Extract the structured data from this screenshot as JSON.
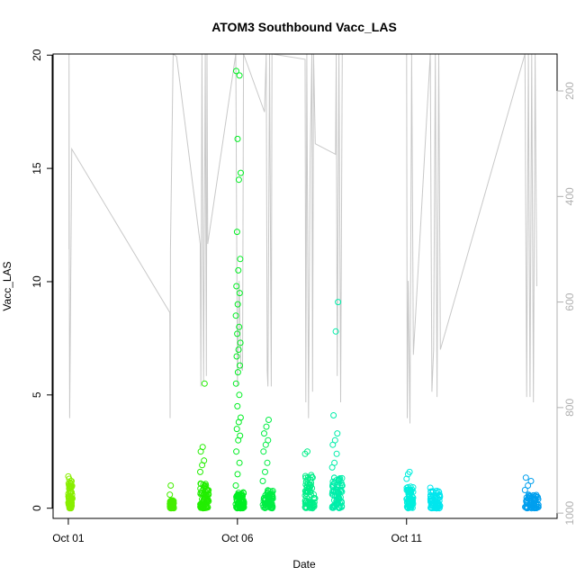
{
  "chart_data": {
    "type": "scatter",
    "title": "ATOM3 Southbound Vacc_LAS",
    "xlabel": "Date",
    "ylabel": "Vacc_LAS",
    "x_units": "days since Oct 01",
    "xlim": [
      -0.45,
      14.45
    ],
    "ylim": [
      -0.45,
      20.05
    ],
    "x_ticks": [
      {
        "value": 0,
        "label": "Oct 01"
      },
      {
        "value": 5,
        "label": "Oct 06"
      },
      {
        "value": 10,
        "label": "Oct 11"
      }
    ],
    "y_ticks": [
      {
        "value": 0,
        "label": "0"
      },
      {
        "value": 5,
        "label": "5"
      },
      {
        "value": 10,
        "label": "10"
      },
      {
        "value": 15,
        "label": "15"
      },
      {
        "value": 20,
        "label": "20"
      }
    ],
    "right_axis": {
      "label_color": "#b0b0b0",
      "ylim": [
        130,
        1010
      ],
      "reversed": true,
      "ticks": [
        {
          "value": 200,
          "label": "200"
        },
        {
          "value": 400,
          "label": "400"
        },
        {
          "value": 600,
          "label": "600"
        },
        {
          "value": 800,
          "label": "800"
        },
        {
          "value": 1000,
          "label": "1000"
        }
      ]
    },
    "series": [
      {
        "name": "clusters",
        "kind": "points",
        "clusters": [
          {
            "x_start": 0.0,
            "x_end": 0.12,
            "base_max": 1.2,
            "color": "#88ee00",
            "outliers": [
              1.4,
              1.3
            ]
          },
          {
            "x_start": 3.0,
            "x_end": 3.12,
            "base_max": 0.35,
            "color": "#44ee00",
            "outliers": [
              0.6,
              1.0
            ]
          },
          {
            "x_start": 3.9,
            "x_end": 4.15,
            "base_max": 1.1,
            "color": "#22ee00",
            "outliers": [
              1.6,
              1.9,
              2.1,
              2.5,
              2.7,
              5.5
            ]
          },
          {
            "x_start": 4.95,
            "x_end": 5.2,
            "base_max": 0.7,
            "color": "#00ee22",
            "outliers": [
              1.0,
              1.5,
              2.0,
              2.5,
              3.0,
              3.2,
              3.5,
              3.8,
              4.0,
              4.5,
              5.0,
              5.5,
              6.0,
              6.3,
              6.7,
              7.0,
              7.3,
              7.7,
              8.0,
              8.5,
              9.0,
              9.5,
              9.8,
              10.5,
              11.0,
              12.2,
              14.5,
              14.8,
              16.3,
              19.1,
              19.3
            ]
          },
          {
            "x_start": 5.75,
            "x_end": 6.05,
            "base_max": 0.8,
            "color": "#00ee44",
            "outliers": [
              1.2,
              1.6,
              2.0,
              2.5,
              2.8,
              3.0,
              3.3,
              3.6,
              3.9
            ]
          },
          {
            "x_start": 7.0,
            "x_end": 7.3,
            "base_max": 1.6,
            "color": "#00ee88",
            "outliers": [
              2.4,
              2.5
            ]
          },
          {
            "x_start": 7.8,
            "x_end": 8.1,
            "base_max": 1.4,
            "color": "#00eeaa",
            "outliers": [
              1.8,
              2.0,
              2.4,
              2.8,
              3.0,
              3.3,
              4.1,
              7.8,
              9.1
            ]
          },
          {
            "x_start": 10.0,
            "x_end": 10.2,
            "base_max": 1.0,
            "color": "#00eedd",
            "outliers": [
              1.3,
              1.5,
              1.6
            ]
          },
          {
            "x_start": 10.7,
            "x_end": 11.0,
            "base_max": 0.8,
            "color": "#00e6ee",
            "outliers": [
              0.9
            ]
          },
          {
            "x_start": 13.5,
            "x_end": 13.9,
            "base_max": 0.6,
            "color": "#009fee",
            "outliers": [
              0.8,
              1.0,
              1.2,
              1.35
            ]
          }
        ]
      },
      {
        "name": "right-axis trace",
        "kind": "line",
        "color": "#c8c8c8",
        "points": [
          [
            0.02,
            500
          ],
          [
            0.02,
            130
          ],
          [
            0.03,
            530
          ],
          [
            0.04,
            820
          ],
          [
            0.1,
            310
          ],
          [
            3.0,
            620
          ],
          [
            3.01,
            820
          ],
          [
            3.02,
            500
          ],
          [
            3.1,
            130
          ],
          [
            3.2,
            135
          ],
          [
            3.9,
            490
          ],
          [
            3.92,
            760
          ],
          [
            3.95,
            130
          ],
          [
            4.0,
            750
          ],
          [
            4.05,
            130
          ],
          [
            4.08,
            740
          ],
          [
            4.1,
            130
          ],
          [
            4.12,
            490
          ],
          [
            4.95,
            130
          ],
          [
            5.0,
            760
          ],
          [
            5.05,
            560
          ],
          [
            5.1,
            720
          ],
          [
            5.15,
            730
          ],
          [
            5.18,
            130
          ],
          [
            5.8,
            240
          ],
          [
            5.85,
            130
          ],
          [
            5.88,
            730
          ],
          [
            5.9,
            760
          ],
          [
            5.95,
            130
          ],
          [
            6.0,
            760
          ],
          [
            6.02,
            130
          ],
          [
            7.0,
            140
          ],
          [
            7.02,
            790
          ],
          [
            7.05,
            130
          ],
          [
            7.1,
            820
          ],
          [
            7.15,
            330
          ],
          [
            7.2,
            130
          ],
          [
            7.22,
            770
          ],
          [
            7.25,
            130
          ],
          [
            7.3,
            300
          ],
          [
            7.9,
            320
          ],
          [
            7.92,
            130
          ],
          [
            7.95,
            740
          ],
          [
            8.0,
            130
          ],
          [
            8.05,
            790
          ],
          [
            8.1,
            130
          ],
          [
            10.0,
            130
          ],
          [
            10.02,
            820
          ],
          [
            10.05,
            560
          ],
          [
            10.1,
            830
          ],
          [
            10.15,
            130
          ],
          [
            10.2,
            700
          ],
          [
            10.7,
            130
          ],
          [
            10.75,
            770
          ],
          [
            10.8,
            690
          ],
          [
            10.85,
            130
          ],
          [
            10.9,
            780
          ],
          [
            10.95,
            130
          ],
          [
            11.0,
            690
          ],
          [
            13.5,
            130
          ],
          [
            13.55,
            780
          ],
          [
            13.6,
            130
          ],
          [
            13.65,
            780
          ],
          [
            13.7,
            130
          ],
          [
            13.75,
            790
          ],
          [
            13.8,
            130
          ],
          [
            13.85,
            570
          ]
        ]
      }
    ]
  }
}
